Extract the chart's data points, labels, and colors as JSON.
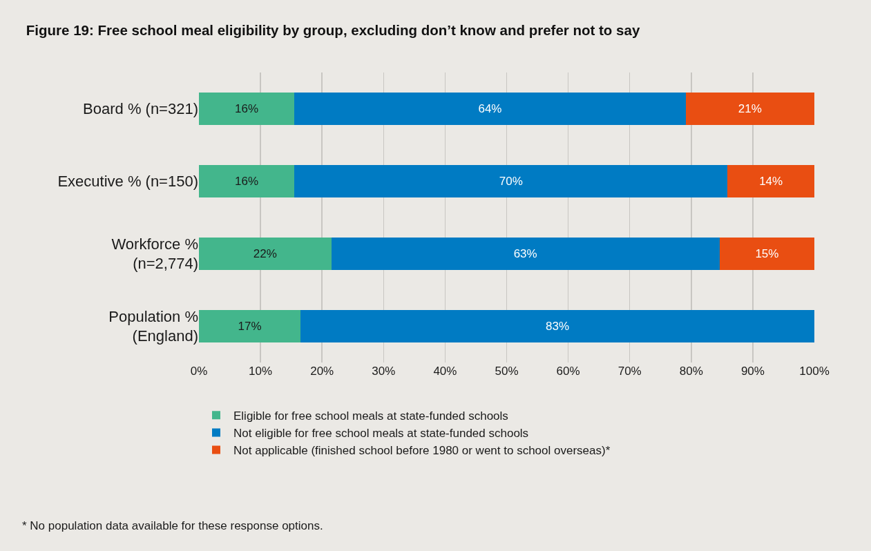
{
  "chart_data": {
    "type": "bar",
    "orientation": "horizontal",
    "stacked": true,
    "title": "Figure 19: Free school meal eligibility by group, excluding don’t know and prefer not to say",
    "categories": [
      "Board % (n=321)",
      "Executive % (n=150)",
      "Workforce %\n(n=2,774)",
      "Population %\n(England)"
    ],
    "series": [
      {
        "name": "Eligible for free school meals at state-funded schools",
        "color": "#43b68c",
        "values": [
          15.5,
          15.5,
          21.5,
          16.5
        ],
        "value_labels": [
          "16%",
          "16%",
          "22%",
          "17%"
        ]
      },
      {
        "name": "Not eligible for free school meals at state-funded schools",
        "color": "#007bc3",
        "values": [
          63.6,
          70.4,
          63.1,
          83.5
        ],
        "value_labels": [
          "64%",
          "70%",
          "63%",
          "83%"
        ]
      },
      {
        "name": "Not applicable (finished school before 1980 or went to school overseas)*",
        "color": "#e94e12",
        "values": [
          20.9,
          14.1,
          15.4,
          null
        ],
        "value_labels": [
          "21%",
          "14%",
          "15%",
          null
        ]
      }
    ],
    "xlim": [
      0,
      100
    ],
    "xticks": [
      {
        "value": 0,
        "label": "0%"
      },
      {
        "value": 10,
        "label": "10%"
      },
      {
        "value": 20,
        "label": "20%"
      },
      {
        "value": 30,
        "label": "30%"
      },
      {
        "value": 40,
        "label": "40%"
      },
      {
        "value": 50,
        "label": "50%"
      },
      {
        "value": 60,
        "label": "60%"
      },
      {
        "value": 70,
        "label": "70%"
      },
      {
        "value": 80,
        "label": "80%"
      },
      {
        "value": 90,
        "label": "90%"
      },
      {
        "value": 100,
        "label": "100%"
      }
    ],
    "grid": "x",
    "legend": "bottom",
    "annotations": [
      "* No population data available for these response options."
    ]
  }
}
